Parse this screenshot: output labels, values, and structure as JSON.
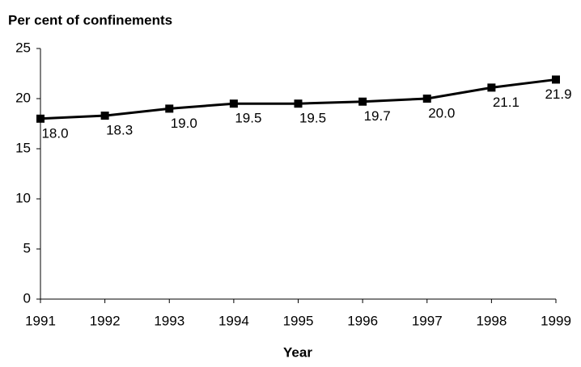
{
  "chart_data": {
    "type": "line",
    "ylabel": "Per cent of confinements",
    "xlabel": "Year",
    "x": [
      1991,
      1992,
      1993,
      1994,
      1995,
      1996,
      1997,
      1998,
      1999
    ],
    "values": [
      18.0,
      18.3,
      19.0,
      19.5,
      19.5,
      19.7,
      20.0,
      21.1,
      21.9
    ],
    "value_labels": [
      "18.0",
      "18.3",
      "19.0",
      "19.5",
      "19.5",
      "19.7",
      "20.0",
      "21.1",
      "21.9"
    ],
    "color": "#000000",
    "xlim": [
      1991,
      1999
    ],
    "xticks": [
      1991,
      1992,
      1993,
      1994,
      1995,
      1996,
      1997,
      1998,
      1999
    ],
    "ylim": [
      0,
      25
    ],
    "yticks": [
      0,
      5,
      10,
      15,
      20,
      25
    ],
    "grid": false
  }
}
